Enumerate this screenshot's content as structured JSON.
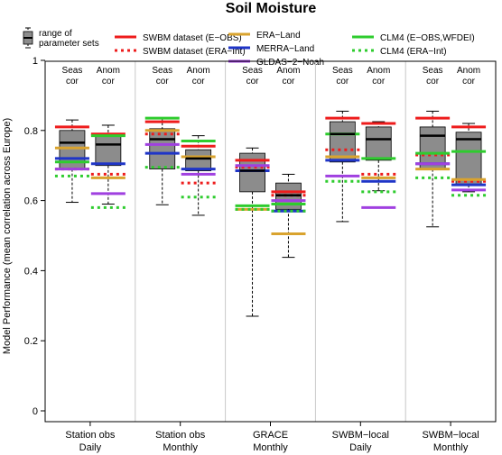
{
  "chart_data": {
    "type": "boxplot",
    "title": "Soil Moisture",
    "ylabel": "Model Performance (mean correlation across Europe)",
    "ylim": [
      0,
      1
    ],
    "yticks": [
      0,
      0.2,
      0.4,
      0.6,
      0.8,
      1
    ],
    "ytick_labels": [
      "0",
      "0.2",
      "0.4",
      "0.6",
      "0.8",
      "1"
    ],
    "categories": [
      {
        "line1": "Station obs",
        "line2": "Daily"
      },
      {
        "line1": "Station obs",
        "line2": "Monthly"
      },
      {
        "line1": "GRACE",
        "line2": "Monthly"
      },
      {
        "line1": "SWBM−local",
        "line2": "Daily"
      },
      {
        "line1": "SWBM−local",
        "line2": "Monthly"
      }
    ],
    "sub_labels": {
      "seas": {
        "line1": "Seas",
        "line2": "cor"
      },
      "anom": {
        "line1": "Anom",
        "line2": "cor"
      }
    },
    "legend": {
      "box_label_line1": "range of",
      "box_label_line2": "parameter sets",
      "entries": [
        {
          "key": "swbm_eobs",
          "label": "SWBM dataset (E−OBS)",
          "color": "#ee1c1c",
          "dashed": false
        },
        {
          "key": "swbm_eraint",
          "label": "SWBM dataset (ERA−Int)",
          "color": "#ee1c1c",
          "dashed": true
        },
        {
          "key": "era_land",
          "label": "ERA−Land",
          "color": "#d9a32e",
          "dashed": false
        },
        {
          "key": "merra_land",
          "label": "MERRA−Land",
          "color": "#1f35c7",
          "dashed": false
        },
        {
          "key": "gldas_noah",
          "label": "GLDAS−2−Noah",
          "color": "#a040e0",
          "dashed": false
        },
        {
          "key": "clm4_eobs",
          "label": "CLM4 (E−OBS,WFDEI)",
          "color": "#2ecc2e",
          "dashed": false
        },
        {
          "key": "clm4_eraint",
          "label": "CLM4 (ERA−Int)",
          "color": "#2ecc2e",
          "dashed": true
        }
      ]
    },
    "box_color": "#8c8c8c",
    "groups": [
      {
        "seas": {
          "whisker_low": 0.595,
          "q1": 0.69,
          "median": 0.765,
          "q3": 0.8,
          "whisker_high": 0.83,
          "models": {
            "swbm_eobs": 0.81,
            "swbm_eraint": 0.69,
            "era_land": 0.75,
            "merra_land": 0.72,
            "gldas_noah": 0.69,
            "clm4_eobs": 0.71,
            "clm4_eraint": 0.67
          }
        },
        "anom": {
          "whisker_low": 0.59,
          "q1": 0.7,
          "median": 0.76,
          "q3": 0.785,
          "whisker_high": 0.815,
          "models": {
            "swbm_eobs": 0.79,
            "swbm_eraint": 0.675,
            "era_land": 0.665,
            "merra_land": 0.705,
            "gldas_noah": 0.62,
            "clm4_eobs": 0.785,
            "clm4_eraint": 0.58
          }
        }
      },
      {
        "seas": {
          "whisker_low": 0.588,
          "q1": 0.69,
          "median": 0.775,
          "q3": 0.805,
          "whisker_high": 0.835,
          "models": {
            "swbm_eobs": 0.825,
            "swbm_eraint": 0.79,
            "era_land": 0.8,
            "merra_land": 0.735,
            "gldas_noah": 0.76,
            "clm4_eobs": 0.835,
            "clm4_eraint": 0.695
          }
        },
        "anom": {
          "whisker_low": 0.558,
          "q1": 0.685,
          "median": 0.72,
          "q3": 0.745,
          "whisker_high": 0.785,
          "models": {
            "swbm_eobs": 0.755,
            "swbm_eraint": 0.65,
            "era_land": 0.725,
            "merra_land": 0.69,
            "gldas_noah": 0.675,
            "clm4_eobs": 0.77,
            "clm4_eraint": 0.61
          }
        }
      },
      {
        "seas": {
          "whisker_low": 0.27,
          "q1": 0.625,
          "median": 0.685,
          "q3": 0.735,
          "whisker_high": 0.75,
          "models": {
            "swbm_eobs": 0.715,
            "swbm_eraint": 0.695,
            "era_land": 0.575,
            "merra_land": 0.685,
            "gldas_noah": 0.7,
            "clm4_eobs": 0.585,
            "clm4_eraint": 0.575
          }
        },
        "anom": {
          "whisker_low": 0.438,
          "q1": 0.575,
          "median": 0.615,
          "q3": 0.65,
          "whisker_high": 0.675,
          "models": {
            "swbm_eobs": 0.625,
            "swbm_eraint": 0.615,
            "era_land": 0.505,
            "merra_land": 0.57,
            "gldas_noah": 0.6,
            "clm4_eobs": 0.59,
            "clm4_eraint": 0.57
          }
        }
      },
      {
        "seas": {
          "whisker_low": 0.54,
          "q1": 0.71,
          "median": 0.79,
          "q3": 0.825,
          "whisker_high": 0.855,
          "models": {
            "swbm_eobs": 0.835,
            "swbm_eraint": 0.745,
            "era_land": 0.725,
            "merra_land": 0.715,
            "gldas_noah": 0.67,
            "clm4_eobs": 0.79,
            "clm4_eraint": 0.655
          }
        },
        "anom": {
          "whisker_low": 0.628,
          "q1": 0.715,
          "median": 0.775,
          "q3": 0.81,
          "whisker_high": 0.825,
          "models": {
            "swbm_eobs": 0.82,
            "swbm_eraint": 0.675,
            "era_land": 0.665,
            "merra_land": 0.655,
            "gldas_noah": 0.58,
            "clm4_eobs": 0.72,
            "clm4_eraint": 0.625
          }
        }
      },
      {
        "seas": {
          "whisker_low": 0.525,
          "q1": 0.69,
          "median": 0.785,
          "q3": 0.81,
          "whisker_high": 0.855,
          "models": {
            "swbm_eobs": 0.835,
            "swbm_eraint": 0.73,
            "era_land": 0.69,
            "merra_land": 0.705,
            "gldas_noah": 0.705,
            "clm4_eobs": 0.735,
            "clm4_eraint": 0.665
          }
        },
        "anom": {
          "whisker_low": 0.625,
          "q1": 0.645,
          "median": 0.775,
          "q3": 0.795,
          "whisker_high": 0.82,
          "models": {
            "swbm_eobs": 0.81,
            "swbm_eraint": 0.655,
            "era_land": 0.66,
            "merra_land": 0.645,
            "gldas_noah": 0.63,
            "clm4_eobs": 0.74,
            "clm4_eraint": 0.615
          }
        }
      }
    ]
  }
}
